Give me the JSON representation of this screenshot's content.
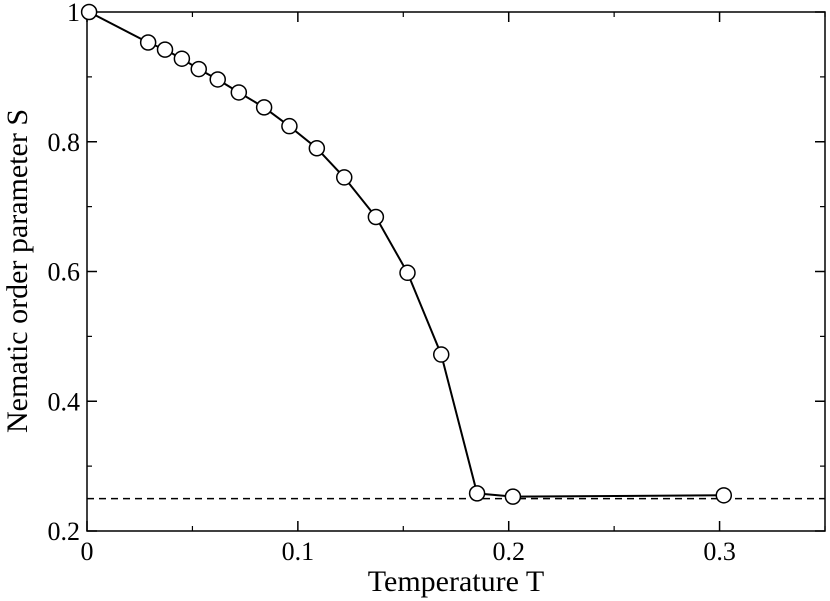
{
  "chart_data": {
    "type": "line",
    "title": "",
    "xlabel": "Temperature T",
    "ylabel": "Nematic order parameter S",
    "xlim": [
      0,
      0.35
    ],
    "ylim": [
      0.2,
      1.0
    ],
    "grid": false,
    "x_ticks": [
      {
        "value": 0,
        "label": "0"
      },
      {
        "value": 0.1,
        "label": "0.1"
      },
      {
        "value": 0.2,
        "label": "0.2"
      },
      {
        "value": 0.3,
        "label": "0.3"
      }
    ],
    "y_ticks": [
      {
        "value": 0.2,
        "label": "0.2"
      },
      {
        "value": 0.4,
        "label": "0.4"
      },
      {
        "value": 0.6,
        "label": "0.6"
      },
      {
        "value": 0.8,
        "label": "0.8"
      },
      {
        "value": 1.0,
        "label": "1"
      }
    ],
    "series": [
      {
        "marker": "open-circle",
        "x": [
          0.001,
          0.029,
          0.037,
          0.045,
          0.053,
          0.062,
          0.072,
          0.084,
          0.096,
          0.109,
          0.122,
          0.137,
          0.152,
          0.168,
          0.185,
          0.202,
          0.302
        ],
        "y": [
          1.0,
          0.953,
          0.942,
          0.928,
          0.912,
          0.896,
          0.876,
          0.853,
          0.824,
          0.79,
          0.745,
          0.684,
          0.598,
          0.472,
          0.258,
          0.253,
          0.255
        ]
      }
    ],
    "reference_lines": [
      {
        "orientation": "horizontal",
        "y": 0.25,
        "style": "dashed"
      }
    ]
  }
}
